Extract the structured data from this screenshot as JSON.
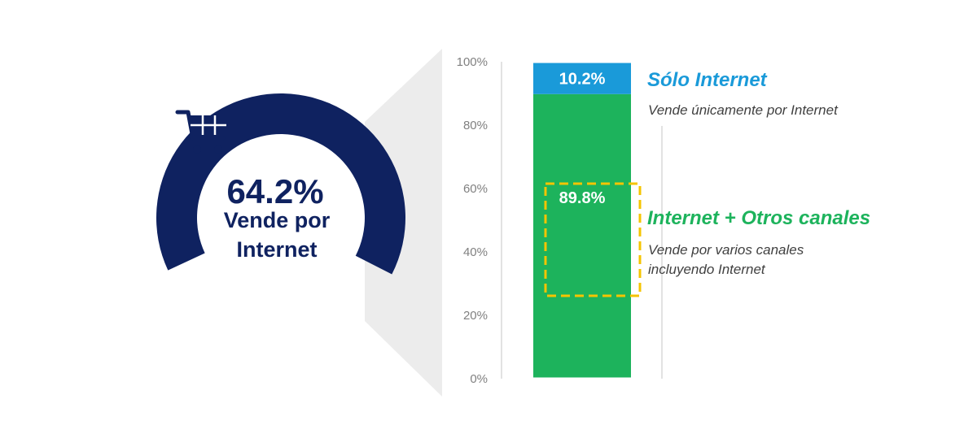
{
  "colors": {
    "navy": "#0f2260",
    "blue": "#1a9ad9",
    "green": "#1db35c",
    "dash": "#f5c400",
    "axis_text": "#808080",
    "wedge": "#ececec",
    "axis_line": "#d9d9d9"
  },
  "icons": {
    "cart": "shopping-cart-icon"
  },
  "donut": {
    "percent_label": "64.2%",
    "label_line1": "Vende por",
    "label_line2": "Internet"
  },
  "chart_data": {
    "type": "bar",
    "stacked": true,
    "ylim": [
      0,
      100
    ],
    "y_ticks": [
      "0%",
      "20%",
      "40%",
      "60%",
      "80%",
      "100%"
    ],
    "grid": false,
    "series": [
      {
        "value": 89.8,
        "value_label": "89.8%",
        "color": "#1db35c",
        "title": "Internet + Otros canales",
        "desc_lines": [
          "Vende por varios canales",
          "incluyendo Internet"
        ]
      },
      {
        "value": 10.2,
        "value_label": "10.2%",
        "color": "#1a9ad9",
        "title": "Sólo Internet",
        "desc_lines": [
          "Vende únicamente por Internet"
        ]
      }
    ]
  }
}
